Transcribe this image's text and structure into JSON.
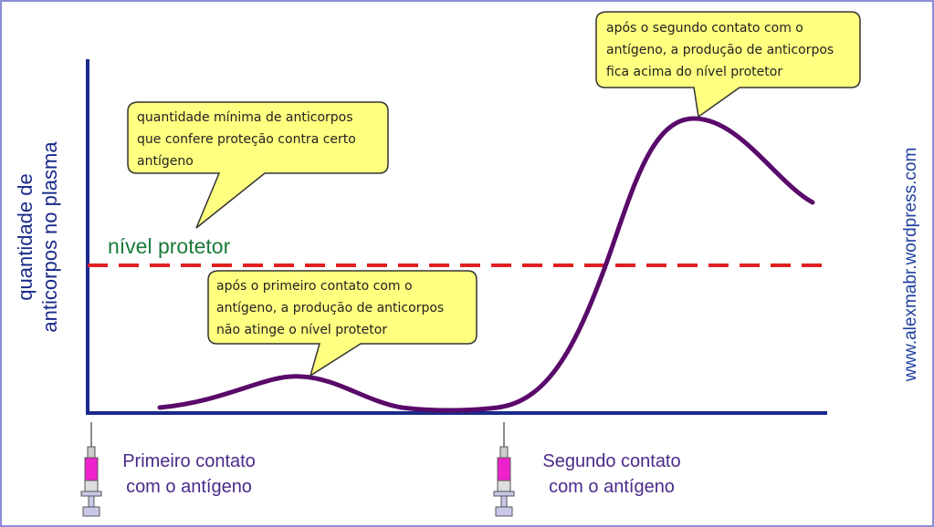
{
  "y_axis_label": [
    "quantidade de",
    "anticorpos no plasma"
  ],
  "protective_level": "nível protetor",
  "callouts": [
    {
      "lines": [
        "quantidade mínima de anticorpos",
        "que confere proteção contra certo",
        "antígeno"
      ]
    },
    {
      "lines": [
        "após o primeiro contato com o",
        "antígeno, a produção de anticorpos",
        "não atinge o nível protetor"
      ]
    },
    {
      "lines": [
        "após o segundo contato com o",
        "antígeno, a produção de anticorpos",
        "fica acima do nível protetor"
      ]
    }
  ],
  "events": [
    {
      "lines": [
        "Primeiro contato",
        "com o antígeno"
      ]
    },
    {
      "lines": [
        "Segundo contato",
        "com o antígeno"
      ]
    }
  ],
  "watermark": "www.alexmabr.wordpress.com"
}
